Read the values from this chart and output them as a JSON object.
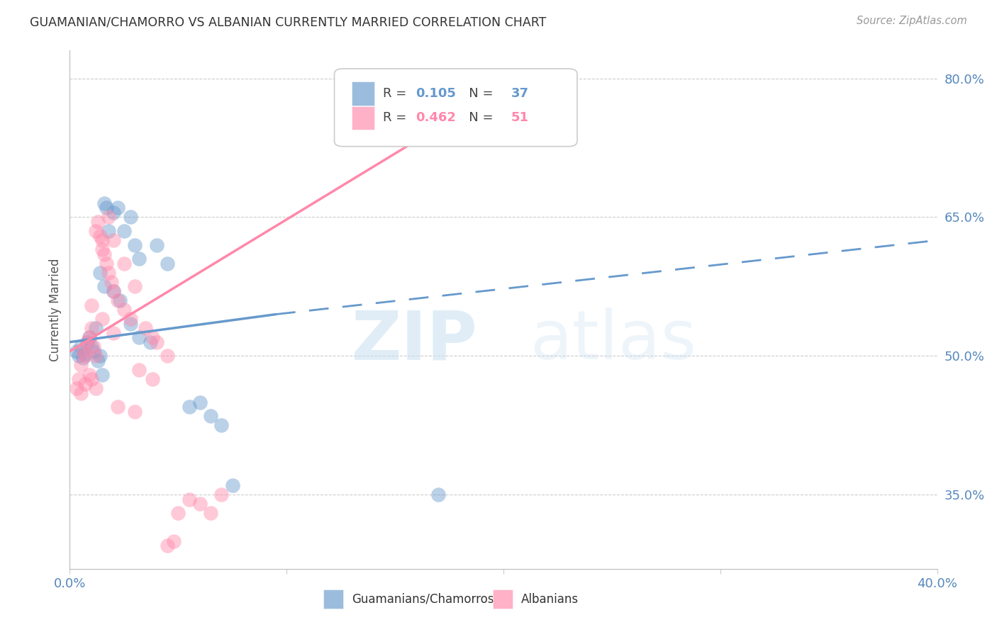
{
  "title": "GUAMANIAN/CHAMORRO VS ALBANIAN CURRENTLY MARRIED CORRELATION CHART",
  "source": "Source: ZipAtlas.com",
  "ylabel": "Currently Married",
  "right_yticks": [
    35.0,
    50.0,
    65.0,
    80.0
  ],
  "xlim": [
    0.0,
    40.0
  ],
  "ylim": [
    27.0,
    83.0
  ],
  "legend1_r": "0.105",
  "legend1_n": "37",
  "legend2_r": "0.462",
  "legend2_n": "51",
  "legend_label1": "Guamanians/Chamorros",
  "legend_label2": "Albanians",
  "blue_color": "#6699cc",
  "pink_color": "#ff88aa",
  "blue_scatter": [
    [
      0.3,
      50.5
    ],
    [
      0.4,
      50.0
    ],
    [
      0.5,
      51.0
    ],
    [
      0.6,
      49.8
    ],
    [
      0.7,
      50.2
    ],
    [
      0.8,
      51.5
    ],
    [
      0.9,
      52.0
    ],
    [
      1.0,
      51.0
    ],
    [
      1.1,
      50.5
    ],
    [
      1.2,
      53.0
    ],
    [
      1.3,
      49.5
    ],
    [
      1.4,
      50.0
    ],
    [
      1.5,
      48.0
    ],
    [
      1.6,
      66.5
    ],
    [
      1.7,
      66.0
    ],
    [
      1.8,
      63.5
    ],
    [
      2.0,
      65.5
    ],
    [
      2.2,
      66.0
    ],
    [
      2.5,
      63.5
    ],
    [
      2.8,
      65.0
    ],
    [
      3.0,
      62.0
    ],
    [
      3.2,
      60.5
    ],
    [
      4.0,
      62.0
    ],
    [
      4.5,
      60.0
    ],
    [
      1.4,
      59.0
    ],
    [
      1.6,
      57.5
    ],
    [
      2.0,
      57.0
    ],
    [
      2.3,
      56.0
    ],
    [
      2.8,
      53.5
    ],
    [
      3.2,
      52.0
    ],
    [
      3.7,
      51.5
    ],
    [
      5.5,
      44.5
    ],
    [
      6.0,
      45.0
    ],
    [
      6.5,
      43.5
    ],
    [
      7.0,
      42.5
    ],
    [
      7.5,
      36.0
    ],
    [
      17.0,
      35.0
    ]
  ],
  "pink_scatter": [
    [
      0.3,
      46.5
    ],
    [
      0.4,
      47.5
    ],
    [
      0.5,
      49.0
    ],
    [
      0.6,
      50.5
    ],
    [
      0.7,
      50.0
    ],
    [
      0.8,
      51.5
    ],
    [
      0.9,
      52.0
    ],
    [
      1.0,
      53.0
    ],
    [
      1.1,
      51.0
    ],
    [
      1.2,
      50.0
    ],
    [
      0.5,
      46.0
    ],
    [
      0.7,
      47.0
    ],
    [
      0.9,
      48.0
    ],
    [
      1.0,
      47.5
    ],
    [
      1.2,
      46.5
    ],
    [
      1.3,
      64.5
    ],
    [
      1.4,
      63.0
    ],
    [
      1.5,
      62.5
    ],
    [
      1.6,
      61.0
    ],
    [
      1.7,
      60.0
    ],
    [
      1.8,
      59.0
    ],
    [
      1.9,
      58.0
    ],
    [
      2.0,
      57.0
    ],
    [
      2.2,
      56.0
    ],
    [
      2.5,
      55.0
    ],
    [
      2.8,
      54.0
    ],
    [
      1.2,
      63.5
    ],
    [
      1.5,
      61.5
    ],
    [
      1.8,
      65.0
    ],
    [
      2.0,
      62.5
    ],
    [
      2.5,
      60.0
    ],
    [
      3.0,
      57.5
    ],
    [
      3.5,
      53.0
    ],
    [
      3.8,
      52.0
    ],
    [
      4.0,
      51.5
    ],
    [
      4.5,
      50.0
    ],
    [
      1.0,
      55.5
    ],
    [
      1.5,
      54.0
    ],
    [
      2.0,
      52.5
    ],
    [
      3.2,
      48.5
    ],
    [
      3.8,
      47.5
    ],
    [
      5.5,
      34.5
    ],
    [
      6.0,
      34.0
    ],
    [
      6.5,
      33.0
    ],
    [
      7.0,
      35.0
    ],
    [
      20.0,
      78.0
    ],
    [
      2.2,
      44.5
    ],
    [
      3.0,
      44.0
    ],
    [
      4.5,
      29.5
    ],
    [
      4.8,
      30.0
    ],
    [
      5.0,
      33.0
    ]
  ],
  "blue_line_solid": [
    [
      0.0,
      51.5
    ],
    [
      9.5,
      54.5
    ]
  ],
  "blue_line_dashed": [
    [
      9.5,
      54.5
    ],
    [
      40.0,
      62.5
    ]
  ],
  "pink_line": [
    [
      0.0,
      50.5
    ],
    [
      20.0,
      79.0
    ]
  ],
  "watermark_zip": "ZIP",
  "watermark_atlas": "atlas",
  "grid_color": "#cccccc",
  "background_color": "#ffffff"
}
